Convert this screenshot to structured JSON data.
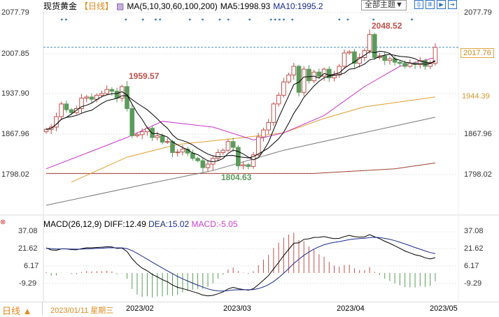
{
  "header": {
    "symbol": "现货黄金",
    "period": "【日线】",
    "ma_label": "MA(5,10,30,60,100,200)",
    "ma5": "MA5:1998.93",
    "ma10": "MA10:1995.2"
  },
  "toolbar": {
    "theme_label": "全部主题▼",
    "buttons": [
      "grid-icon",
      "columns-icon",
      "play-icon",
      "exit-icon"
    ]
  },
  "price_axis": {
    "ticks": [
      "2077.79",
      "2007.85",
      "1937.90",
      "1867.96",
      "1798.02"
    ],
    "current_price": "2017.76",
    "ma60_value": "1944.39"
  },
  "annotations": {
    "high1": "1959.57",
    "low1": "1804.63",
    "high2": "2048.52"
  },
  "macd": {
    "title": "MACD(26,12,9)",
    "diff": "DIFF:12.49",
    "dea": "DEA:15.02",
    "macd": "MACD:-5.05",
    "ticks": [
      "37.08",
      "21.62",
      "6.17",
      "-9.29"
    ]
  },
  "footer": {
    "period_button": "日线 ▲",
    "cursor_date": "2023/01/11 星期三",
    "months": [
      "2023/02",
      "2023/03",
      "2023/04",
      "2023/05"
    ]
  },
  "colors": {
    "up": "#c0504d",
    "down": "#5b9b5b",
    "ma5": "#000000",
    "ma10": "#000000",
    "ma30": "#cc33cc",
    "ma60": "#e0a030",
    "ma100": "#777777",
    "ma200": "#a04030"
  },
  "chart_data": {
    "type": "candlestick",
    "closes": [
      1876,
      1880,
      1898,
      1920,
      1910,
      1905,
      1912,
      1930,
      1932,
      1928,
      1935,
      1938,
      1945,
      1942,
      1930,
      1950,
      1912,
      1865,
      1867,
      1872,
      1878,
      1862,
      1865,
      1854,
      1855,
      1836,
      1837,
      1842,
      1835,
      1826,
      1822,
      1810,
      1816,
      1826,
      1836,
      1840,
      1855,
      1845,
      1813,
      1815,
      1812,
      1832,
      1863,
      1875,
      1888,
      1920,
      1935,
      1958,
      1970,
      1985,
      1940,
      1980,
      1960,
      1975,
      1968,
      1980,
      1965,
      1970,
      1985,
      2008,
      2010,
      1990,
      2000,
      2012,
      2040,
      2000,
      2003,
      1995,
      1998,
      1992,
      1990,
      1985,
      1990,
      1988,
      1995,
      1985,
      1990,
      2017.76
    ],
    "first_open": 1872,
    "special": {
      "high": [
        [
          16,
          1959.57
        ],
        [
          64,
          2048.52
        ]
      ],
      "low": [
        [
          33,
          1804.63
        ]
      ]
    },
    "ma30": [
      [
        0,
        1808
      ],
      [
        16,
        1862
      ],
      [
        23,
        1890
      ],
      [
        33,
        1880
      ],
      [
        41,
        1858
      ],
      [
        47,
        1870
      ],
      [
        55,
        1900
      ],
      [
        63,
        1950
      ],
      [
        70,
        1985
      ],
      [
        77,
        2000
      ]
    ],
    "ma60": [
      [
        5,
        1785
      ],
      [
        16,
        1828
      ],
      [
        26,
        1850
      ],
      [
        37,
        1860
      ],
      [
        47,
        1870
      ],
      [
        55,
        1895
      ],
      [
        63,
        1915
      ],
      [
        77,
        1932
      ]
    ],
    "ma100": [
      [
        0,
        1745
      ],
      [
        19,
        1780
      ],
      [
        33,
        1805
      ],
      [
        47,
        1840
      ],
      [
        60,
        1865
      ],
      [
        77,
        1897
      ]
    ],
    "ma200": [
      [
        0,
        1800
      ],
      [
        33,
        1800
      ],
      [
        53,
        1800
      ],
      [
        69,
        1808
      ],
      [
        77,
        1818
      ]
    ],
    "price_range": [
      1798.02,
      2077.79
    ],
    "macd_ticks": [
      37.08,
      21.62,
      6.17,
      -9.29
    ]
  }
}
